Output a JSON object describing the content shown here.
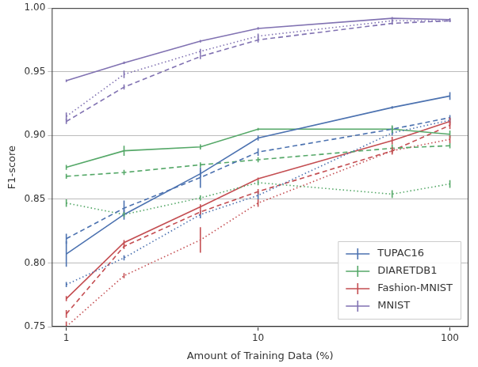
{
  "chart_data": {
    "type": "line",
    "x_label": "Amount of Training Data (%)",
    "y_label": "F1-score",
    "x": [
      1,
      2,
      5,
      10,
      50,
      100
    ],
    "log": "x",
    "xlim": [
      0.84,
      125
    ],
    "xticks": [
      1,
      10,
      100
    ],
    "ylim": [
      0.75,
      1.0
    ],
    "yticks": [
      0.75,
      {
        "value": 0.8,
        "label": "0.80"
      },
      0.85,
      {
        "value": 0.9,
        "label": "0.90"
      },
      0.95,
      {
        "value": 1.0,
        "label": "1.00"
      }
    ],
    "grid": "y",
    "legend": "lower right",
    "series": [
      {
        "name": "TUPAC16",
        "color": "#4c72b0",
        "line_style": "solid",
        "values": [
          0.807,
          0.838,
          0.87,
          0.898,
          0.922,
          0.931
        ],
        "errors": [
          0.01,
          0.004,
          0.003,
          0.002,
          0.001,
          0.003
        ]
      },
      {
        "name": "TUPAC16",
        "color": "#4c72b0",
        "line_style": "dashed",
        "values": [
          0.819,
          0.843,
          0.867,
          0.887,
          0.905,
          0.914
        ],
        "errors": [
          0.004,
          0.006,
          0.008,
          0.003,
          0.002,
          0.002
        ]
      },
      {
        "name": "TUPAC16",
        "color": "#4c72b0",
        "line_style": "dotted",
        "values": [
          0.783,
          0.804,
          0.838,
          0.853,
          0.902,
          0.912
        ],
        "errors": [
          0.002,
          0.002,
          0.003,
          0.003,
          0.002,
          0.002
        ]
      },
      {
        "name": "DIARETDB1",
        "color": "#55a868",
        "line_style": "solid",
        "values": [
          0.875,
          0.888,
          0.891,
          0.905,
          0.905,
          0.901
        ],
        "errors": [
          0.002,
          0.004,
          0.002,
          0.001,
          0.003,
          0.003
        ]
      },
      {
        "name": "DIARETDB1",
        "color": "#55a868",
        "line_style": "dashed",
        "values": [
          0.868,
          0.871,
          0.877,
          0.881,
          0.89,
          0.892
        ],
        "errors": [
          0.002,
          0.002,
          0.002,
          0.002,
          0.003,
          0.002
        ]
      },
      {
        "name": "DIARETDB1",
        "color": "#55a868",
        "line_style": "dotted",
        "values": [
          0.847,
          0.838,
          0.851,
          0.863,
          0.854,
          0.862
        ],
        "errors": [
          0.003,
          0.002,
          0.002,
          0.002,
          0.003,
          0.003
        ]
      },
      {
        "name": "Fashion-MNIST",
        "color": "#c44e52",
        "line_style": "solid",
        "values": [
          0.772,
          0.816,
          0.844,
          0.866,
          0.896,
          0.911
        ],
        "errors": [
          0.002,
          0.002,
          0.002,
          0.001,
          0.003,
          0.003
        ]
      },
      {
        "name": "Fashion-MNIST",
        "color": "#c44e52",
        "line_style": "dashed",
        "values": [
          0.76,
          0.813,
          0.84,
          0.856,
          0.888,
          0.908
        ],
        "errors": [
          0.003,
          0.002,
          0.002,
          0.002,
          0.003,
          0.003
        ]
      },
      {
        "name": "Fashion-MNIST",
        "color": "#c44e52",
        "line_style": "dotted",
        "values": [
          0.75,
          0.79,
          0.818,
          0.847,
          0.888,
          0.897
        ],
        "errors": [
          0.004,
          0.002,
          0.01,
          0.003,
          0.002,
          0.003
        ]
      },
      {
        "name": "MNIST",
        "color": "#8172b2",
        "line_style": "solid",
        "values": [
          0.943,
          0.957,
          0.974,
          0.984,
          0.992,
          0.991
        ],
        "errors": [
          0.001,
          0.001,
          0.001,
          0.001,
          0.001,
          0.001
        ]
      },
      {
        "name": "MNIST",
        "color": "#8172b2",
        "line_style": "dashed",
        "values": [
          0.911,
          0.938,
          0.962,
          0.975,
          0.988,
          0.99
        ],
        "errors": [
          0.002,
          0.002,
          0.002,
          0.002,
          0.001,
          0.001
        ]
      },
      {
        "name": "MNIST",
        "color": "#8172b2",
        "line_style": "dotted",
        "values": [
          0.915,
          0.948,
          0.966,
          0.978,
          0.99,
          0.99
        ],
        "errors": [
          0.003,
          0.003,
          0.002,
          0.002,
          0.001,
          0.001
        ]
      }
    ]
  }
}
